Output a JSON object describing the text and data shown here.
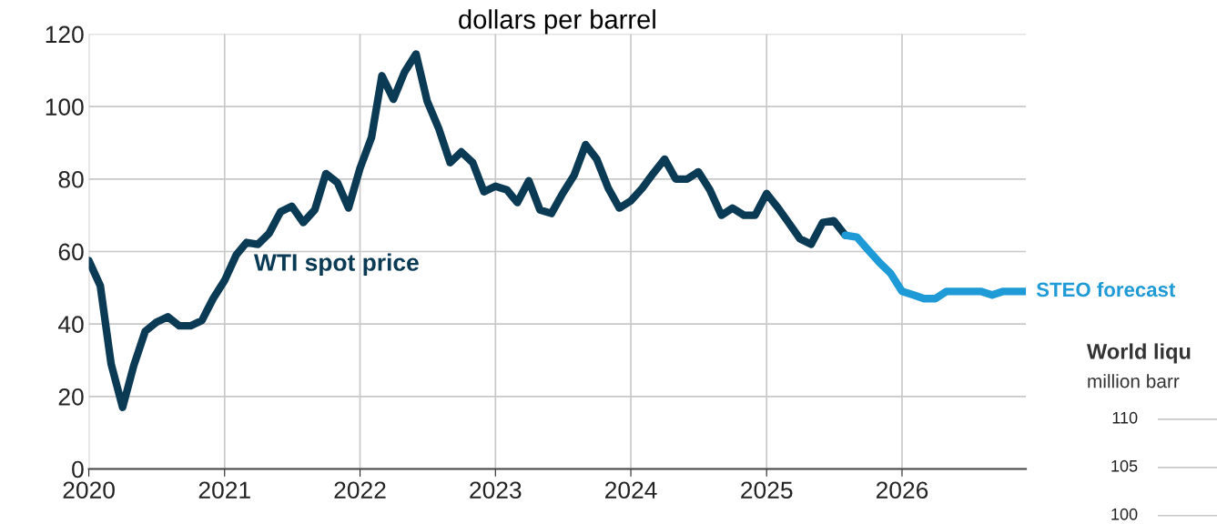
{
  "chart_data": [
    {
      "type": "line",
      "title": "dollars per barrel",
      "xlim": [
        "2020-01",
        "2026-12"
      ],
      "xticks": [
        {
          "value": "2020-01",
          "label": "2020"
        },
        {
          "value": "2021-01",
          "label": "2021"
        },
        {
          "value": "2022-01",
          "label": "2022"
        },
        {
          "value": "2023-01",
          "label": "2023"
        },
        {
          "value": "2024-01",
          "label": "2024"
        },
        {
          "value": "2025-01",
          "label": "2025"
        },
        {
          "value": "2026-01",
          "label": "2026"
        }
      ],
      "ylim": [
        0,
        120
      ],
      "yticks": [
        0,
        20,
        40,
        60,
        80,
        100,
        120
      ],
      "grid": true,
      "line_style": "solid",
      "series": [
        {
          "name": "WTI spot price",
          "color": "#0b3b54",
          "x": [
            "2020-01",
            "2020-02",
            "2020-03",
            "2020-04",
            "2020-05",
            "2020-06",
            "2020-07",
            "2020-08",
            "2020-09",
            "2020-10",
            "2020-11",
            "2020-12",
            "2021-01",
            "2021-02",
            "2021-03",
            "2021-04",
            "2021-05",
            "2021-06",
            "2021-07",
            "2021-08",
            "2021-09",
            "2021-10",
            "2021-11",
            "2021-12",
            "2022-01",
            "2022-02",
            "2022-03",
            "2022-04",
            "2022-05",
            "2022-06",
            "2022-07",
            "2022-08",
            "2022-09",
            "2022-10",
            "2022-11",
            "2022-12",
            "2023-01",
            "2023-02",
            "2023-03",
            "2023-04",
            "2023-05",
            "2023-06",
            "2023-07",
            "2023-08",
            "2023-09",
            "2023-10",
            "2023-11",
            "2023-12",
            "2024-01",
            "2024-02",
            "2024-03",
            "2024-04",
            "2024-05",
            "2024-06",
            "2024-07",
            "2024-08",
            "2024-09",
            "2024-10",
            "2024-11",
            "2024-12",
            "2025-01",
            "2025-02",
            "2025-03",
            "2025-04",
            "2025-05",
            "2025-06",
            "2025-07",
            "2025-08"
          ],
          "values": [
            57.5,
            50.5,
            29,
            17,
            28.5,
            38,
            40.5,
            42,
            39.5,
            39.5,
            41,
            47,
            52,
            59,
            62.5,
            62,
            65,
            71,
            72.5,
            68,
            71.5,
            81.5,
            79,
            72,
            83,
            91.5,
            108.5,
            102,
            109.5,
            114.5,
            101.5,
            94,
            84.5,
            87.5,
            84.5,
            76.5,
            78,
            77,
            73.5,
            79.5,
            71.5,
            70.5,
            76,
            81,
            89.5,
            85.5,
            77.5,
            72,
            74,
            77.5,
            81.5,
            85.5,
            80,
            80,
            82,
            77,
            70,
            72,
            70,
            70,
            76,
            72,
            68,
            63.5,
            62,
            68,
            68.5,
            64.5
          ]
        },
        {
          "name": "STEO forecast",
          "color": "#1e9ad6",
          "x": [
            "2025-08",
            "2025-09",
            "2025-10",
            "2025-11",
            "2025-12",
            "2026-01",
            "2026-02",
            "2026-03",
            "2026-04",
            "2026-05",
            "2026-06",
            "2026-07",
            "2026-08",
            "2026-09",
            "2026-10",
            "2026-11",
            "2026-12"
          ],
          "values": [
            64.5,
            64,
            60.5,
            57,
            54,
            49,
            48,
            47,
            47,
            49,
            49,
            49,
            49,
            48,
            49,
            49,
            49
          ]
        }
      ]
    },
    {
      "type": "other",
      "title": "World liqu",
      "subtitle": "million barr",
      "annotations": [
        "110",
        "105",
        "100"
      ]
    }
  ]
}
